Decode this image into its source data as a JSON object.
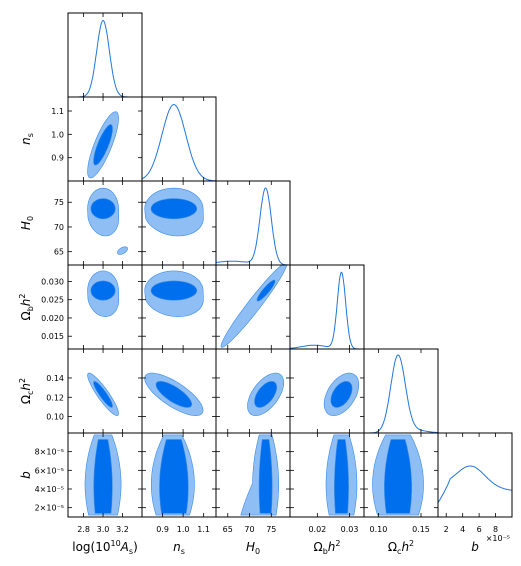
{
  "chart_data": {
    "type": "triangle-corner-plot",
    "params": [
      {
        "id": "logA",
        "label_base": "log(10",
        "label_sup": "10",
        "label_rest": "A",
        "label_sub": "s",
        "label_close": ")",
        "ticks": [
          2.8,
          3.0,
          3.2
        ],
        "tick_labels": [
          "2.8",
          "3.0",
          "3.2"
        ],
        "range": [
          2.64,
          3.4
        ]
      },
      {
        "id": "ns",
        "label_base": "n",
        "label_sub": "s",
        "ticks": [
          0.9,
          1.0,
          1.1
        ],
        "tick_labels": [
          "0.9",
          "1.0",
          "1.1"
        ],
        "range": [
          0.8,
          1.16
        ]
      },
      {
        "id": "H0",
        "label_base": "H",
        "label_sub": "0",
        "ticks": [
          65,
          70,
          75
        ],
        "tick_labels": [
          "65",
          "70",
          "75"
        ],
        "range": [
          62.3,
          79.3
        ]
      },
      {
        "id": "ombh2",
        "label_base": "Ω",
        "label_sub": "b",
        "label_rest": "h",
        "label_sup": "2",
        "ticks": [
          0.015,
          0.02,
          0.025,
          0.03
        ],
        "tick_labels": [
          "0.015",
          "0.020",
          "0.025",
          "0.030"
        ],
        "xtick_labels": [
          "0.02",
          "0.03"
        ],
        "xticks": [
          0.02,
          0.03
        ],
        "range": [
          0.0115,
          0.0345
        ]
      },
      {
        "id": "omch2",
        "label_base": "Ω",
        "label_sub": "c",
        "label_rest": "h",
        "label_sup": "2",
        "ticks": [
          0.1,
          0.12,
          0.14
        ],
        "tick_labels": [
          "0.10",
          "0.12",
          "0.14"
        ],
        "xtick_labels": [
          "0.10",
          "0.15"
        ],
        "xticks": [
          0.1,
          0.15
        ],
        "range": [
          0.083,
          0.17
        ]
      },
      {
        "id": "b",
        "label_base": "b",
        "ticks": [
          2e-05,
          4e-05,
          6e-05,
          8e-05
        ],
        "tick_labels": [
          "2×10⁻⁵",
          "4×10⁻⁵",
          "6×10⁻⁵",
          "8×10⁻⁵"
        ],
        "xticks": [
          2,
          4,
          6,
          8
        ],
        "xtick_labels": [
          "2",
          "4",
          "6",
          "8"
        ],
        "x_offset_label": "×10⁻⁵",
        "range": [
          1.0,
          10.0
        ]
      }
    ],
    "diagonal_1d": [
      {
        "param": "logA",
        "mean": 3.0,
        "sigma": 0.065
      },
      {
        "param": "ns",
        "mean": 0.955,
        "sigma": 0.058
      },
      {
        "param": "H0",
        "mean": 73.7,
        "sigma": 1.3
      },
      {
        "param": "ombh2",
        "mean": 0.0275,
        "sigma": 0.0013
      },
      {
        "param": "omch2",
        "mean": 0.123,
        "sigma": 0.0085
      },
      {
        "param": "b",
        "peak": 5.0,
        "shape": "broad, declining toward high values"
      }
    ],
    "contour_levels": [
      "68%",
      "95%"
    ],
    "colors": {
      "inner": "#006fed",
      "outer": "#8fbef4",
      "outline": "#3a8be8",
      "line": "#1f77e0"
    },
    "grid": false,
    "legend": "none"
  }
}
